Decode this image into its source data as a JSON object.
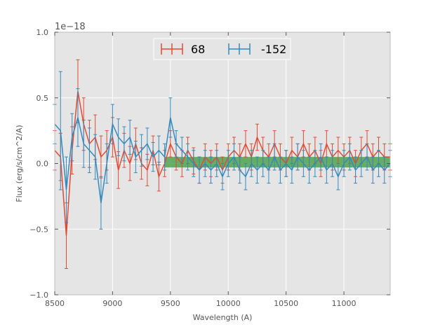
{
  "chart_data": {
    "type": "line",
    "title": "",
    "xlabel": "Wavelength (A)",
    "ylabel": "Flux (erg/s/cm^2/A)",
    "offset_text": "1e−18",
    "y_scale_factor": 1e-18,
    "xlim": [
      8500,
      11400
    ],
    "ylim": [
      -1.0,
      1.0
    ],
    "xticks": [
      8500,
      9000,
      9500,
      10000,
      10500,
      11000
    ],
    "xtick_labels": [
      "8500",
      "9000",
      "9500",
      "10000",
      "10500",
      "11000"
    ],
    "yticks": [
      -1.0,
      -0.5,
      0.0,
      0.5,
      1.0
    ],
    "ytick_labels": [
      "−1.0",
      "−0.5",
      "0.0",
      "0.5",
      "1.0"
    ],
    "grid": true,
    "legend_position": "top-center",
    "band": {
      "x": [
        9450,
        11400
      ],
      "y": [
        -0.03,
        0.05
      ],
      "color": "#3a9a3a"
    },
    "series": [
      {
        "name": "68",
        "color": "#e24a33",
        "x": [
          8500,
          8550,
          8600,
          8650,
          8700,
          8750,
          8800,
          8850,
          8900,
          8950,
          9000,
          9050,
          9100,
          9150,
          9200,
          9250,
          9300,
          9350,
          9400,
          9450,
          9500,
          9550,
          9600,
          9650,
          9700,
          9750,
          9800,
          9850,
          9900,
          9950,
          10000,
          10050,
          10100,
          10150,
          10200,
          10250,
          10300,
          10350,
          10400,
          10450,
          10500,
          10550,
          10600,
          10650,
          10700,
          10750,
          10800,
          10850,
          10900,
          10950,
          11000,
          11050,
          11100,
          11150,
          11200,
          11250,
          11300,
          11350,
          11400
        ],
        "y": [
          0.1,
          0.05,
          -0.55,
          0.1,
          0.55,
          0.3,
          0.15,
          0.2,
          0.05,
          0.1,
          0.2,
          -0.05,
          0.1,
          0.0,
          0.15,
          0.0,
          -0.05,
          0.1,
          -0.1,
          0.0,
          0.15,
          0.05,
          0.0,
          0.1,
          0.02,
          -0.05,
          0.05,
          0.0,
          0.05,
          -0.05,
          0.05,
          0.1,
          0.05,
          0.15,
          0.05,
          0.2,
          0.1,
          0.05,
          0.15,
          0.05,
          0.0,
          0.1,
          0.05,
          0.15,
          0.05,
          0.1,
          0.0,
          0.15,
          0.05,
          0.1,
          0.05,
          0.1,
          0.0,
          0.1,
          0.15,
          0.05,
          0.1,
          0.05,
          0.05
        ],
        "err": [
          0.15,
          0.18,
          0.25,
          0.18,
          0.24,
          0.2,
          0.18,
          0.17,
          0.16,
          0.15,
          0.15,
          0.14,
          0.13,
          0.13,
          0.12,
          0.12,
          0.12,
          0.11,
          0.11,
          0.1,
          0.1,
          0.1,
          0.1,
          0.1,
          0.1,
          0.1,
          0.1,
          0.1,
          0.1,
          0.1,
          0.1,
          0.1,
          0.1,
          0.1,
          0.1,
          0.1,
          0.1,
          0.1,
          0.1,
          0.1,
          0.1,
          0.1,
          0.1,
          0.1,
          0.1,
          0.1,
          0.1,
          0.1,
          0.1,
          0.1,
          0.1,
          0.1,
          0.1,
          0.1,
          0.1,
          0.1,
          0.1,
          0.1,
          0.1
        ]
      },
      {
        "name": "-152",
        "color": "#348abd",
        "x": [
          8500,
          8550,
          8600,
          8650,
          8700,
          8750,
          8800,
          8850,
          8900,
          8950,
          9000,
          9050,
          9100,
          9150,
          9200,
          9250,
          9300,
          9350,
          9400,
          9450,
          9500,
          9550,
          9600,
          9650,
          9700,
          9750,
          9800,
          9850,
          9900,
          9950,
          10000,
          10050,
          10100,
          10150,
          10200,
          10250,
          10300,
          10350,
          10400,
          10450,
          10500,
          10550,
          10600,
          10650,
          10700,
          10750,
          10800,
          10850,
          10900,
          10950,
          11000,
          11050,
          11100,
          11150,
          11200,
          11250,
          11300,
          11350,
          11400
        ],
        "y": [
          0.3,
          0.25,
          -0.2,
          0.2,
          0.35,
          0.15,
          0.1,
          0.05,
          -0.3,
          0.0,
          0.3,
          0.2,
          0.15,
          0.2,
          0.05,
          0.1,
          0.15,
          0.05,
          0.1,
          0.05,
          0.35,
          0.15,
          0.1,
          0.05,
          0.0,
          -0.05,
          0.0,
          -0.05,
          0.0,
          -0.1,
          0.0,
          0.05,
          -0.05,
          -0.1,
          0.0,
          -0.05,
          0.0,
          -0.05,
          0.05,
          -0.05,
          0.0,
          -0.05,
          0.05,
          0.0,
          -0.05,
          0.0,
          0.05,
          -0.05,
          0.0,
          -0.1,
          0.0,
          0.05,
          -0.05,
          0.0,
          0.05,
          -0.05,
          0.0,
          -0.05,
          0.0
        ],
        "err": [
          0.15,
          0.45,
          0.25,
          0.18,
          0.22,
          0.18,
          0.17,
          0.17,
          0.2,
          0.15,
          0.15,
          0.14,
          0.13,
          0.13,
          0.12,
          0.12,
          0.12,
          0.11,
          0.11,
          0.1,
          0.15,
          0.1,
          0.1,
          0.1,
          0.1,
          0.1,
          0.1,
          0.1,
          0.1,
          0.1,
          0.1,
          0.1,
          0.1,
          0.1,
          0.1,
          0.1,
          0.1,
          0.1,
          0.1,
          0.1,
          0.1,
          0.1,
          0.1,
          0.1,
          0.1,
          0.1,
          0.1,
          0.1,
          0.1,
          0.1,
          0.1,
          0.1,
          0.1,
          0.1,
          0.1,
          0.1,
          0.1,
          0.1,
          0.1
        ]
      }
    ]
  }
}
